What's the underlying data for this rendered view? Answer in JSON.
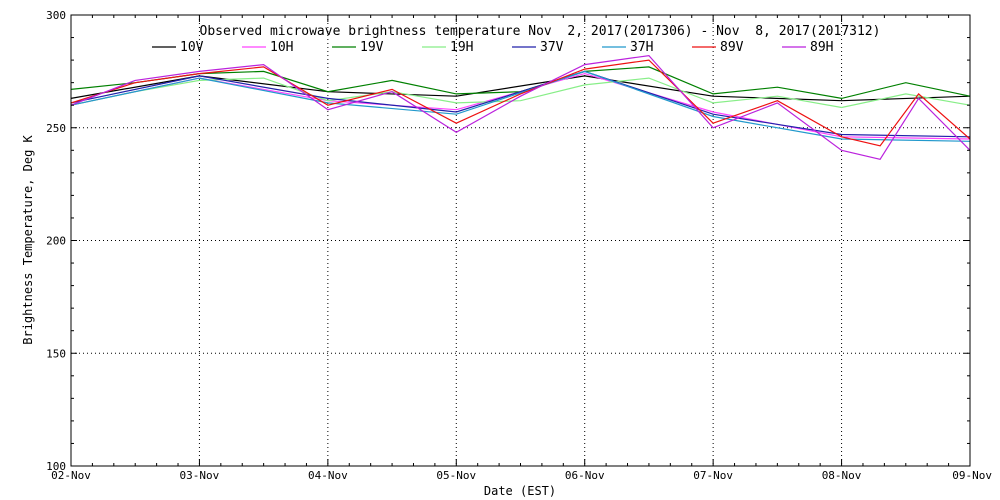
{
  "chart_data": {
    "type": "line",
    "title": "Observed microwave brightness temperature Nov  2, 2017(2017306) - Nov  8, 2017(2017312)",
    "xlabel": "Date (EST)",
    "ylabel": "Brightness Temperature, Deg K",
    "ylim": [
      100,
      300
    ],
    "yticks": [
      "100",
      "150",
      "200",
      "250",
      "300"
    ],
    "xlim": [
      "2017-11-02",
      "2017-11-09"
    ],
    "xticks": [
      "02-Nov",
      "03-Nov",
      "04-Nov",
      "05-Nov",
      "06-Nov",
      "07-Nov",
      "08-Nov",
      "09-Nov"
    ],
    "grid": true,
    "legend_position": "top",
    "series": [
      {
        "name": "10V",
        "color": "#000000",
        "x": [
          "2017-11-02",
          "2017-11-03",
          "2017-11-04",
          "2017-11-05",
          "2017-11-06",
          "2017-11-07",
          "2017-11-08",
          "2017-11-09"
        ],
        "y": [
          263,
          273,
          266,
          264,
          273,
          264,
          262,
          264
        ]
      },
      {
        "name": "10H",
        "color": "#ff44ff",
        "x": [
          "2017-11-02",
          "2017-11-03",
          "2017-11-04",
          "2017-11-05",
          "2017-11-06",
          "2017-11-07",
          "2017-11-08",
          "2017-11-09"
        ],
        "y": [
          260,
          272,
          262,
          258,
          274,
          257,
          246,
          245
        ]
      },
      {
        "name": "19V",
        "color": "#008000",
        "x": [
          "2017-11-02",
          "2017-11-02.5",
          "2017-11-03",
          "2017-11-03.5",
          "2017-11-04",
          "2017-11-04.5",
          "2017-11-05",
          "2017-11-05.5",
          "2017-11-06",
          "2017-11-06.5",
          "2017-11-07",
          "2017-11-07.5",
          "2017-11-08",
          "2017-11-08.5",
          "2017-11-09"
        ],
        "y": [
          267,
          270,
          274,
          275,
          266,
          271,
          265,
          266,
          275,
          277,
          265,
          268,
          263,
          270,
          264
        ]
      },
      {
        "name": "19H",
        "color": "#88ee88",
        "x": [
          "2017-11-02",
          "2017-11-02.5",
          "2017-11-03",
          "2017-11-03.5",
          "2017-11-04",
          "2017-11-04.5",
          "2017-11-05",
          "2017-11-05.5",
          "2017-11-06",
          "2017-11-06.5",
          "2017-11-07",
          "2017-11-07.5",
          "2017-11-08",
          "2017-11-08.5",
          "2017-11-09"
        ],
        "y": [
          260,
          266,
          271,
          272,
          262,
          266,
          261,
          262,
          269,
          272,
          261,
          264,
          259,
          265,
          260
        ]
      },
      {
        "name": "37V",
        "color": "#2222aa",
        "x": [
          "2017-11-02",
          "2017-11-03",
          "2017-11-04",
          "2017-11-05",
          "2017-11-06",
          "2017-11-07",
          "2017-11-08",
          "2017-11-09"
        ],
        "y": [
          261,
          273,
          263,
          257,
          275,
          256,
          247,
          246
        ]
      },
      {
        "name": "37H",
        "color": "#2299cc",
        "x": [
          "2017-11-02",
          "2017-11-03",
          "2017-11-04",
          "2017-11-05",
          "2017-11-06",
          "2017-11-07",
          "2017-11-08",
          "2017-11-09"
        ],
        "y": [
          260,
          272,
          261,
          256,
          275,
          255,
          245,
          244
        ]
      },
      {
        "name": "89V",
        "color": "#ee1111",
        "x": [
          "2017-11-02",
          "2017-11-02.5",
          "2017-11-03",
          "2017-11-03.5",
          "2017-11-04",
          "2017-11-04.5",
          "2017-11-05",
          "2017-11-05.5",
          "2017-11-06",
          "2017-11-06.5",
          "2017-11-07",
          "2017-11-07.5",
          "2017-11-08",
          "2017-11-08.3",
          "2017-11-08.6",
          "2017-11-09"
        ],
        "y": [
          261,
          270,
          274,
          277,
          260,
          267,
          252,
          265,
          276,
          280,
          252,
          262,
          246,
          242,
          265,
          245
        ]
      },
      {
        "name": "89H",
        "color": "#bb22dd",
        "x": [
          "2017-11-02",
          "2017-11-02.5",
          "2017-11-03",
          "2017-11-03.5",
          "2017-11-04",
          "2017-11-04.5",
          "2017-11-05",
          "2017-11-05.5",
          "2017-11-06",
          "2017-11-06.5",
          "2017-11-07",
          "2017-11-07.5",
          "2017-11-08",
          "2017-11-08.3",
          "2017-11-08.6",
          "2017-11-09"
        ],
        "y": [
          260,
          271,
          275,
          278,
          258,
          266,
          248,
          264,
          278,
          282,
          250,
          261,
          240,
          236,
          263,
          240
        ]
      }
    ]
  }
}
